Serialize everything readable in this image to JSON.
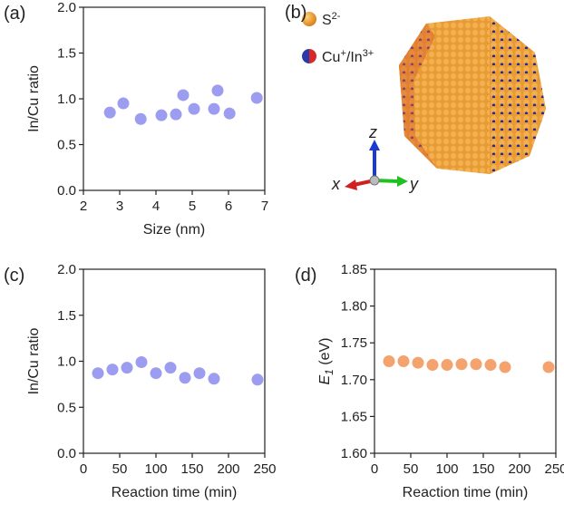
{
  "chart_data": [
    {
      "type": "scatter",
      "label": "(a)",
      "xlabel": "Size (nm)",
      "ylabel": "In/Cu ratio",
      "color": "#9c9cf0",
      "x": [
        2.73,
        3.1,
        3.58,
        4.15,
        4.55,
        4.75,
        5.05,
        5.6,
        5.7,
        6.03,
        6.78
      ],
      "values": [
        0.85,
        0.95,
        0.78,
        0.82,
        0.83,
        1.04,
        0.89,
        0.89,
        1.09,
        0.84,
        1.01
      ],
      "xlim": [
        2,
        7
      ],
      "xticks": [
        2,
        3,
        4,
        5,
        6,
        7
      ],
      "ylim": [
        0,
        2
      ],
      "yticks": [
        {
          "value": 0,
          "label": "0.0"
        },
        0.5,
        {
          "value": 1,
          "label": "1.0"
        },
        1.5,
        {
          "value": 2,
          "label": "2.0"
        }
      ]
    },
    {
      "type": "scatter",
      "label": "(c)",
      "xlabel": "Reaction time (min)",
      "ylabel": "In/Cu ratio",
      "color": "#9c9cf0",
      "x": [
        20,
        40,
        60,
        80,
        100,
        120,
        140,
        160,
        180,
        240
      ],
      "values": [
        0.87,
        0.91,
        0.93,
        0.99,
        0.87,
        0.93,
        0.82,
        0.87,
        0.81,
        0.8
      ],
      "xlim": [
        0,
        250
      ],
      "xticks": [
        0,
        50,
        100,
        150,
        200,
        250
      ],
      "ylim": [
        0,
        2
      ],
      "yticks": [
        {
          "value": 0,
          "label": "0.0"
        },
        0.5,
        {
          "value": 1,
          "label": "1.0"
        },
        1.5,
        {
          "value": 2,
          "label": "2.0"
        }
      ]
    },
    {
      "type": "scatter",
      "label": "(d)",
      "xlabel": "Reaction time (min)",
      "ylabel": {
        "symbol": "E",
        "subscript": "1",
        "unit": " (eV)"
      },
      "color": "#f5a36e",
      "x": [
        20,
        40,
        60,
        80,
        100,
        120,
        140,
        160,
        180,
        240
      ],
      "values": [
        1.725,
        1.725,
        1.723,
        1.72,
        1.72,
        1.721,
        1.721,
        1.72,
        1.717,
        1.717
      ],
      "xlim": [
        0,
        250
      ],
      "xticks": [
        0,
        50,
        100,
        150,
        200,
        250
      ],
      "ylim": [
        1.6,
        1.85
      ],
      "yticks": [
        {
          "value": 1.6,
          "label": "1.60"
        },
        1.65,
        {
          "value": 1.7,
          "label": "1.70"
        },
        1.75,
        {
          "value": 1.8,
          "label": "1.80"
        },
        1.85
      ]
    }
  ],
  "panel_b": {
    "label": "(b)",
    "legend": [
      {
        "symbol": "S",
        "superscript": "2-"
      },
      {
        "parts": [
          "Cu",
          "+",
          "/In",
          "3+"
        ]
      }
    ],
    "axes": [
      "x",
      "y",
      "z"
    ]
  }
}
